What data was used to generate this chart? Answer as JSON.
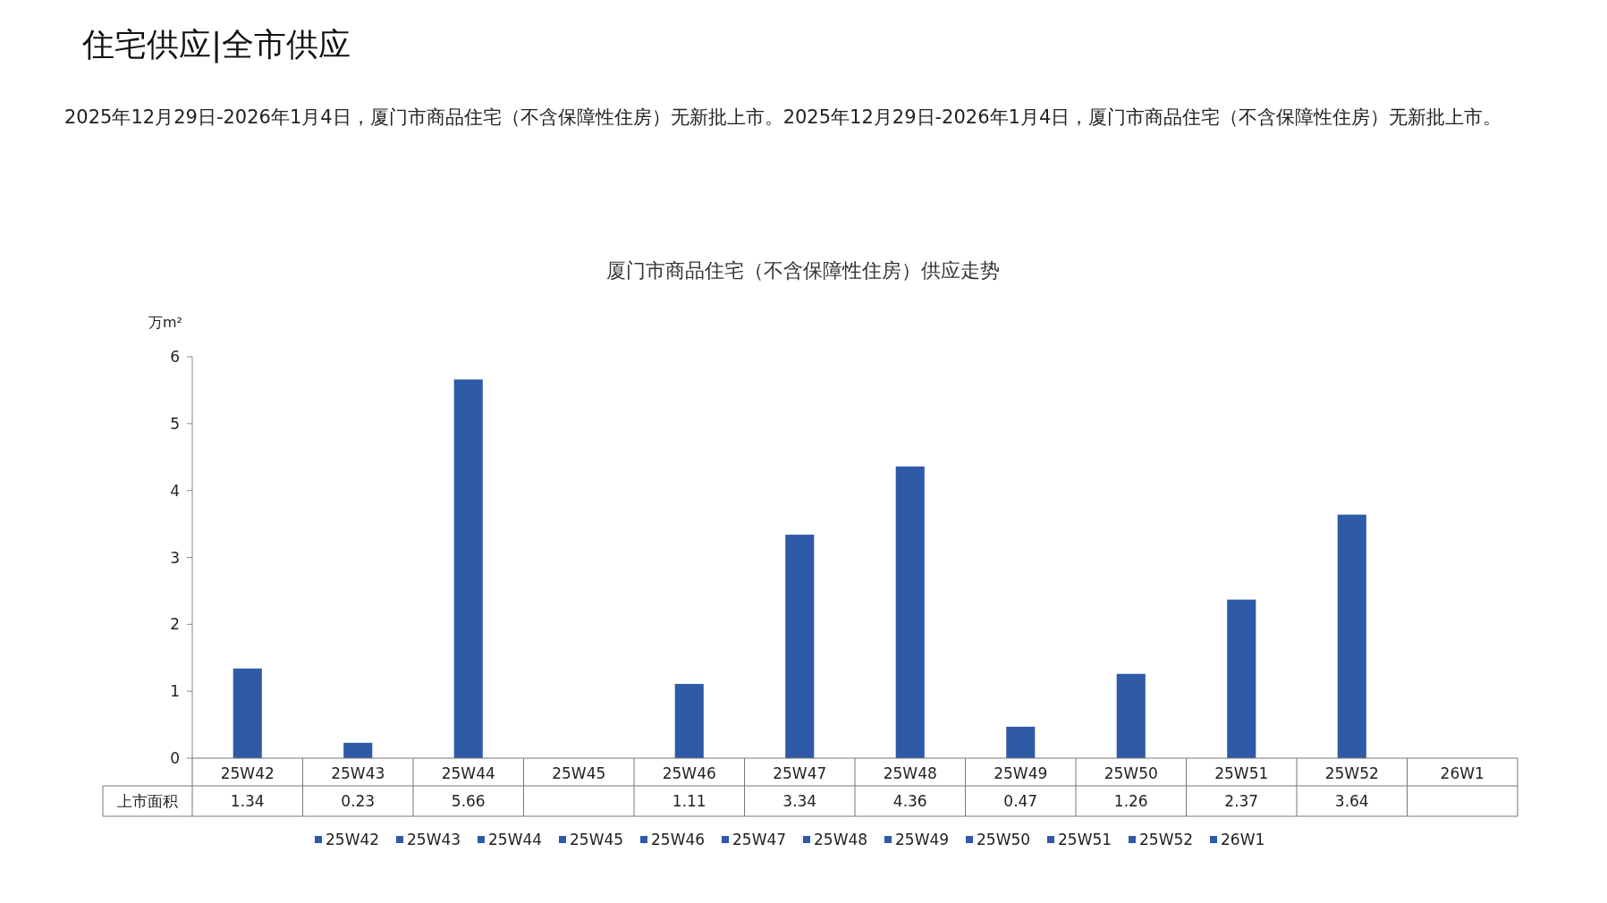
{
  "chart_data": {
    "type": "bar",
    "title": "厦门市商品住宅（不含保障性住房）供应走势",
    "ylabel": "万m²",
    "annotations": [
      "住宅供应|全市供应",
      "2025年12月29日-2026年1月4日，厦门市商品住宅（不含保障性住房）无新批上市。2025年12月29日-2026年1月4日，厦门市商品住宅（不含保障性住房）无新批上市。"
    ],
    "categories": [
      "25W42",
      "25W43",
      "25W44",
      "25W45",
      "25W46",
      "25W47",
      "25W48",
      "25W49",
      "25W50",
      "25W51",
      "25W52",
      "26W1"
    ],
    "series": [
      {
        "name": "上市面积",
        "color": "#2e5aa7",
        "values": [
          1.34,
          0.23,
          5.66,
          null,
          1.11,
          3.34,
          4.36,
          0.47,
          1.26,
          2.37,
          3.64,
          null
        ]
      }
    ],
    "ylim": [
      0,
      6
    ],
    "yticks": [
      0,
      1,
      2,
      3,
      4,
      5,
      6
    ],
    "data_labels": true,
    "legend": "bottom",
    "grid": false
  }
}
